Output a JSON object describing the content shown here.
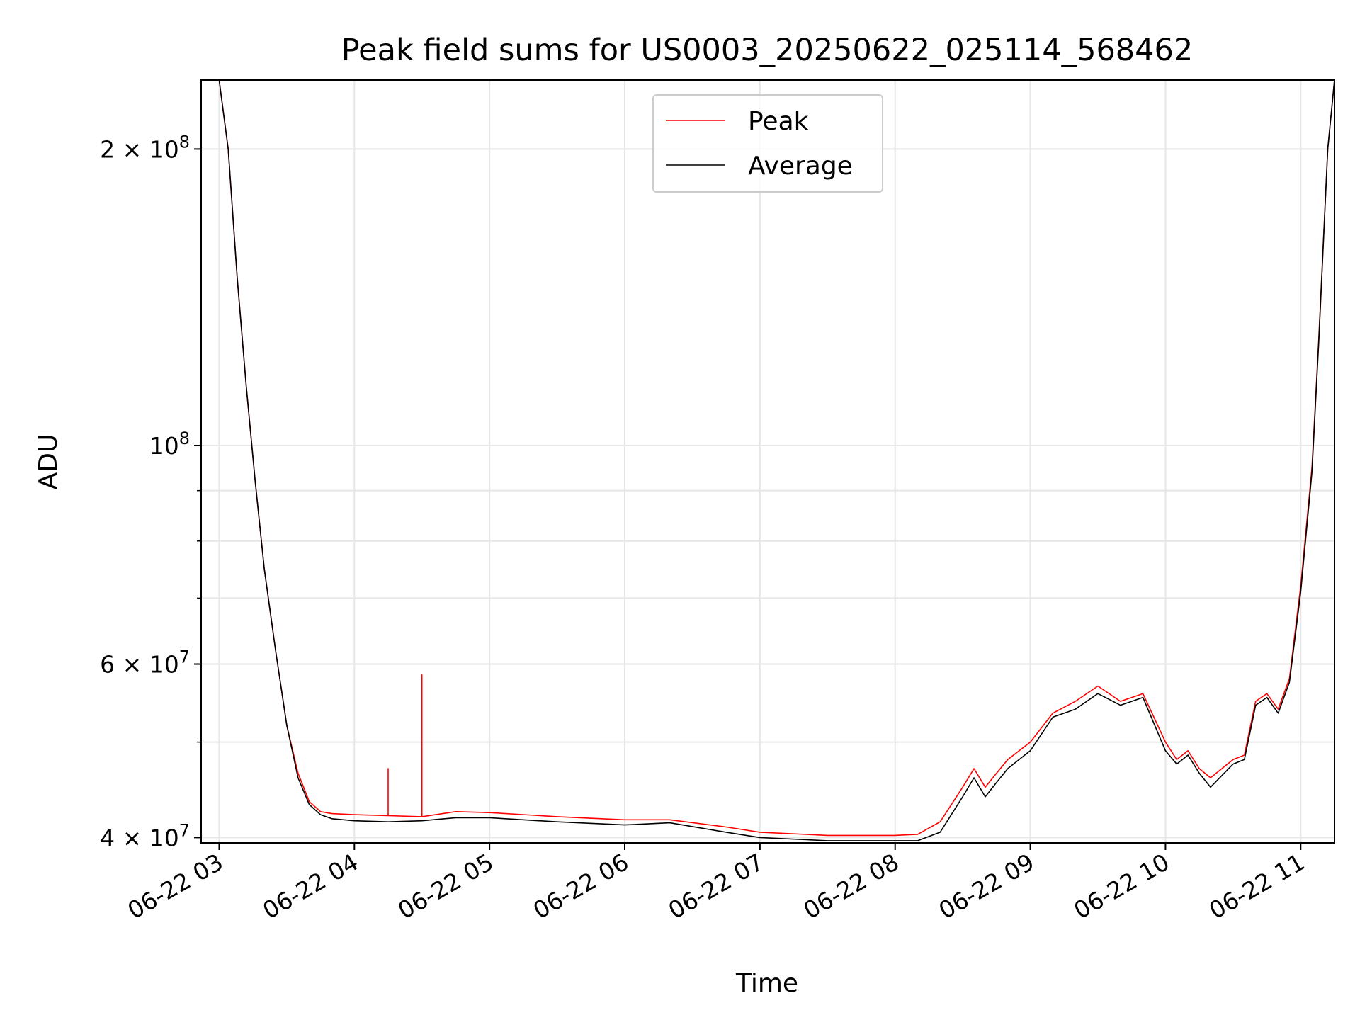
{
  "chart_data": {
    "type": "line",
    "title": "Peak field sums for US0003_20250622_025114_568462",
    "xlabel": "Time",
    "ylabel": "ADU",
    "x_scale": "time",
    "y_scale": "log",
    "xlim": [
      "2025-06-22 02:52",
      "2025-06-22 11:15"
    ],
    "ylim": [
      39500000,
      235000000
    ],
    "grid": true,
    "legend_position": "upper center",
    "x_ticks": [
      "06-22 03",
      "06-22 04",
      "06-22 05",
      "06-22 06",
      "06-22 07",
      "06-22 08",
      "06-22 09",
      "06-22 10",
      "06-22 11"
    ],
    "x_tick_values": [
      "2025-06-22 03:00",
      "2025-06-22 04:00",
      "2025-06-22 05:00",
      "2025-06-22 06:00",
      "2025-06-22 07:00",
      "2025-06-22 08:00",
      "2025-06-22 09:00",
      "2025-06-22 10:00",
      "2025-06-22 11:00"
    ],
    "y_ticks": [
      {
        "value": 40000000,
        "base": "4",
        "exp": "7"
      },
      {
        "value": 60000000,
        "base": "6",
        "exp": "7"
      },
      {
        "value": 100000000,
        "base": "",
        "exp": "8"
      },
      {
        "value": 200000000,
        "base": "2",
        "exp": "8"
      }
    ],
    "series": [
      {
        "name": "Peak",
        "color": "#ff0000",
        "x": [
          "2025-06-22 02:52",
          "2025-06-22 03:00",
          "2025-06-22 03:04",
          "2025-06-22 03:08",
          "2025-06-22 03:12",
          "2025-06-22 03:16",
          "2025-06-22 03:20",
          "2025-06-22 03:25",
          "2025-06-22 03:30",
          "2025-06-22 03:35",
          "2025-06-22 03:40",
          "2025-06-22 03:45",
          "2025-06-22 03:50",
          "2025-06-22 04:00",
          "2025-06-22 04:15",
          "2025-06-22 04:15",
          "2025-06-22 04:15",
          "2025-06-22 04:30",
          "2025-06-22 04:30",
          "2025-06-22 04:30",
          "2025-06-22 04:45",
          "2025-06-22 05:00",
          "2025-06-22 05:30",
          "2025-06-22 06:00",
          "2025-06-22 06:20",
          "2025-06-22 06:45",
          "2025-06-22 07:00",
          "2025-06-22 07:30",
          "2025-06-22 08:00",
          "2025-06-22 08:10",
          "2025-06-22 08:20",
          "2025-06-22 08:30",
          "2025-06-22 08:35",
          "2025-06-22 08:40",
          "2025-06-22 08:45",
          "2025-06-22 08:50",
          "2025-06-22 09:00",
          "2025-06-22 09:10",
          "2025-06-22 09:20",
          "2025-06-22 09:30",
          "2025-06-22 09:40",
          "2025-06-22 09:50",
          "2025-06-22 10:00",
          "2025-06-22 10:05",
          "2025-06-22 10:10",
          "2025-06-22 10:15",
          "2025-06-22 10:20",
          "2025-06-22 10:30",
          "2025-06-22 10:35",
          "2025-06-22 10:40",
          "2025-06-22 10:45",
          "2025-06-22 10:50",
          "2025-06-22 10:55",
          "2025-06-22 11:00",
          "2025-06-22 11:05",
          "2025-06-22 11:08",
          "2025-06-22 11:12",
          "2025-06-22 11:15"
        ],
        "y": [
          235000000,
          235000000,
          200000000,
          148000000,
          115000000,
          92000000,
          75000000,
          62000000,
          52000000,
          46500000,
          43500000,
          42500000,
          42300000,
          42200000,
          42100000,
          47000000,
          42100000,
          42000000,
          58500000,
          42000000,
          42500000,
          42400000,
          42000000,
          41700000,
          41700000,
          41000000,
          40500000,
          40200000,
          40200000,
          40300000,
          41500000,
          45000000,
          47000000,
          45000000,
          46500000,
          48000000,
          50000000,
          53500000,
          55000000,
          57000000,
          55000000,
          56000000,
          50000000,
          48000000,
          49000000,
          47000000,
          46000000,
          48000000,
          48500000,
          55000000,
          56000000,
          54000000,
          58000000,
          72000000,
          95000000,
          128000000,
          200000000,
          235000000
        ]
      },
      {
        "name": "Average",
        "color": "#000000",
        "x": [
          "2025-06-22 02:52",
          "2025-06-22 03:00",
          "2025-06-22 03:04",
          "2025-06-22 03:08",
          "2025-06-22 03:12",
          "2025-06-22 03:16",
          "2025-06-22 03:20",
          "2025-06-22 03:25",
          "2025-06-22 03:30",
          "2025-06-22 03:35",
          "2025-06-22 03:40",
          "2025-06-22 03:45",
          "2025-06-22 03:50",
          "2025-06-22 04:00",
          "2025-06-22 04:15",
          "2025-06-22 04:30",
          "2025-06-22 04:45",
          "2025-06-22 05:00",
          "2025-06-22 05:30",
          "2025-06-22 06:00",
          "2025-06-22 06:20",
          "2025-06-22 06:45",
          "2025-06-22 07:00",
          "2025-06-22 07:30",
          "2025-06-22 08:00",
          "2025-06-22 08:10",
          "2025-06-22 08:20",
          "2025-06-22 08:30",
          "2025-06-22 08:35",
          "2025-06-22 08:40",
          "2025-06-22 08:45",
          "2025-06-22 08:50",
          "2025-06-22 09:00",
          "2025-06-22 09:10",
          "2025-06-22 09:20",
          "2025-06-22 09:30",
          "2025-06-22 09:40",
          "2025-06-22 09:50",
          "2025-06-22 10:00",
          "2025-06-22 10:05",
          "2025-06-22 10:10",
          "2025-06-22 10:15",
          "2025-06-22 10:20",
          "2025-06-22 10:30",
          "2025-06-22 10:35",
          "2025-06-22 10:40",
          "2025-06-22 10:45",
          "2025-06-22 10:50",
          "2025-06-22 10:55",
          "2025-06-22 11:00",
          "2025-06-22 11:05",
          "2025-06-22 11:08",
          "2025-06-22 11:12",
          "2025-06-22 11:15"
        ],
        "y": [
          235000000,
          235000000,
          200000000,
          148000000,
          115000000,
          92000000,
          75000000,
          62000000,
          52000000,
          46000000,
          43200000,
          42200000,
          41800000,
          41600000,
          41500000,
          41600000,
          41900000,
          41900000,
          41500000,
          41200000,
          41400000,
          40500000,
          40000000,
          39700000,
          39700000,
          39700000,
          40500000,
          44000000,
          46000000,
          44000000,
          45500000,
          47000000,
          49000000,
          53000000,
          54000000,
          56000000,
          54500000,
          55500000,
          49000000,
          47500000,
          48500000,
          46500000,
          45000000,
          47500000,
          48000000,
          54500000,
          55500000,
          53500000,
          57500000,
          71000000,
          94000000,
          127000000,
          200000000,
          235000000
        ]
      }
    ]
  }
}
